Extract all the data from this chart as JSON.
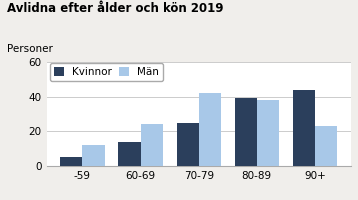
{
  "title": "Avlidna efter ålder och kön 2019",
  "ylabel": "Personer",
  "categories": [
    "-59",
    "60-69",
    "70-79",
    "80-89",
    "90+"
  ],
  "kvinnor": [
    5,
    14,
    25,
    39,
    44
  ],
  "man": [
    12,
    24,
    42,
    38,
    23
  ],
  "color_kvinnor": "#2b3f5c",
  "color_man": "#a8c8e8",
  "bg_color": "#f0eeeb",
  "plot_bg": "#ffffff",
  "ylim": [
    0,
    60
  ],
  "yticks": [
    0,
    20,
    40,
    60
  ],
  "legend_labels": [
    "Kvinnor",
    "Män"
  ],
  "bar_width": 0.38
}
